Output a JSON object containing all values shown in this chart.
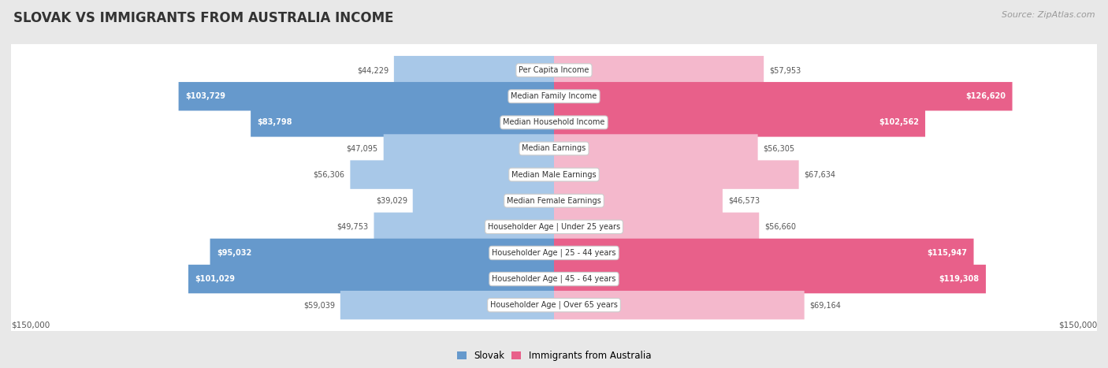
{
  "title": "Slovak vs Immigrants from Australia Income",
  "source": "Source: ZipAtlas.com",
  "categories": [
    "Per Capita Income",
    "Median Family Income",
    "Median Household Income",
    "Median Earnings",
    "Median Male Earnings",
    "Median Female Earnings",
    "Householder Age | Under 25 years",
    "Householder Age | 25 - 44 years",
    "Householder Age | 45 - 64 years",
    "Householder Age | Over 65 years"
  ],
  "slovak_values": [
    44229,
    103729,
    83798,
    47095,
    56306,
    39029,
    49753,
    95032,
    101029,
    59039
  ],
  "australia_values": [
    57953,
    126620,
    102562,
    56305,
    67634,
    46573,
    56660,
    115947,
    119308,
    69164
  ],
  "slovak_labels": [
    "$44,229",
    "$103,729",
    "$83,798",
    "$47,095",
    "$56,306",
    "$39,029",
    "$49,753",
    "$95,032",
    "$101,029",
    "$59,039"
  ],
  "australia_labels": [
    "$57,953",
    "$126,620",
    "$102,562",
    "$56,305",
    "$67,634",
    "$46,573",
    "$56,660",
    "$115,947",
    "$119,308",
    "$69,164"
  ],
  "slovak_color_light": "#a8c8e8",
  "slovak_color_dark": "#6699cc",
  "australia_color_light": "#f4b8cc",
  "australia_color_dark": "#e8608a",
  "max_value": 150000,
  "bold_threshold_slovak": 70000,
  "bold_threshold_australia": 70000,
  "legend_slovak": "Slovak",
  "legend_australia": "Immigrants from Australia",
  "background_color": "#e8e8e8",
  "row_bg_color": "#ffffff",
  "title_color": "#333333",
  "source_color": "#999999",
  "label_dark_color": "#555555",
  "label_light_color": "#ffffff",
  "axis_label_color": "#555555"
}
